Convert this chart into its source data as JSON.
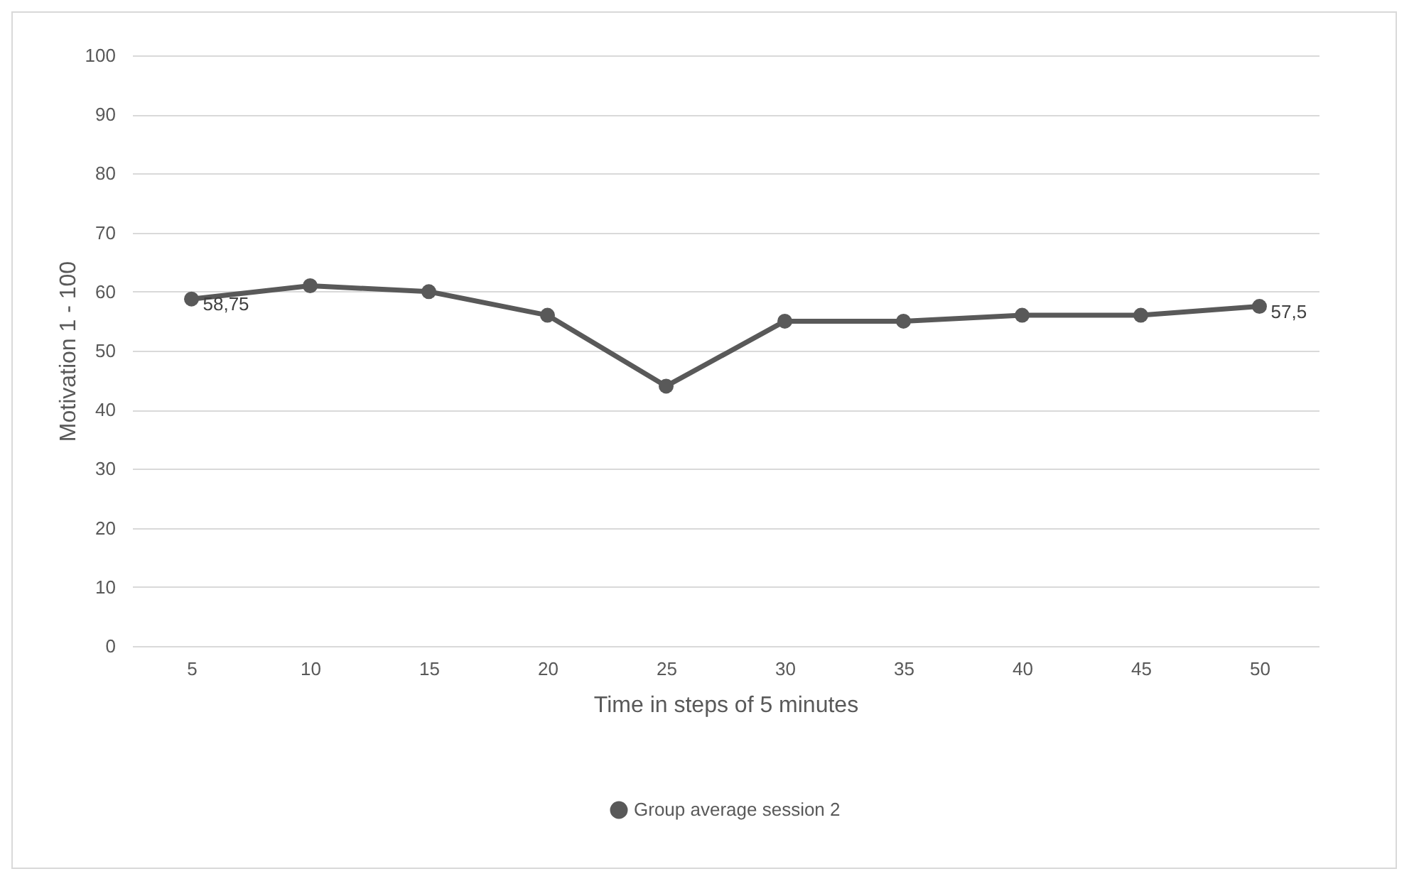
{
  "chart_data": {
    "type": "line",
    "xlabel": "Time in steps of 5 minutes",
    "ylabel": "Motivation 1 - 100",
    "categories": [
      "5",
      "10",
      "15",
      "20",
      "25",
      "30",
      "35",
      "40",
      "45",
      "50"
    ],
    "series": [
      {
        "name": "Group average session 2",
        "color": "#595959",
        "values": [
          58.75,
          61,
          60,
          56,
          44,
          55,
          55,
          56,
          56,
          57.5
        ],
        "value_labels": [
          "58,75",
          null,
          null,
          null,
          null,
          null,
          null,
          null,
          null,
          "57,5"
        ]
      }
    ],
    "ylim": [
      0,
      100
    ],
    "yticks": [
      0,
      10,
      20,
      30,
      40,
      50,
      60,
      70,
      80,
      90,
      100
    ],
    "grid": "y",
    "legend": "bottom",
    "marker": "circle",
    "line_style": "solid"
  }
}
